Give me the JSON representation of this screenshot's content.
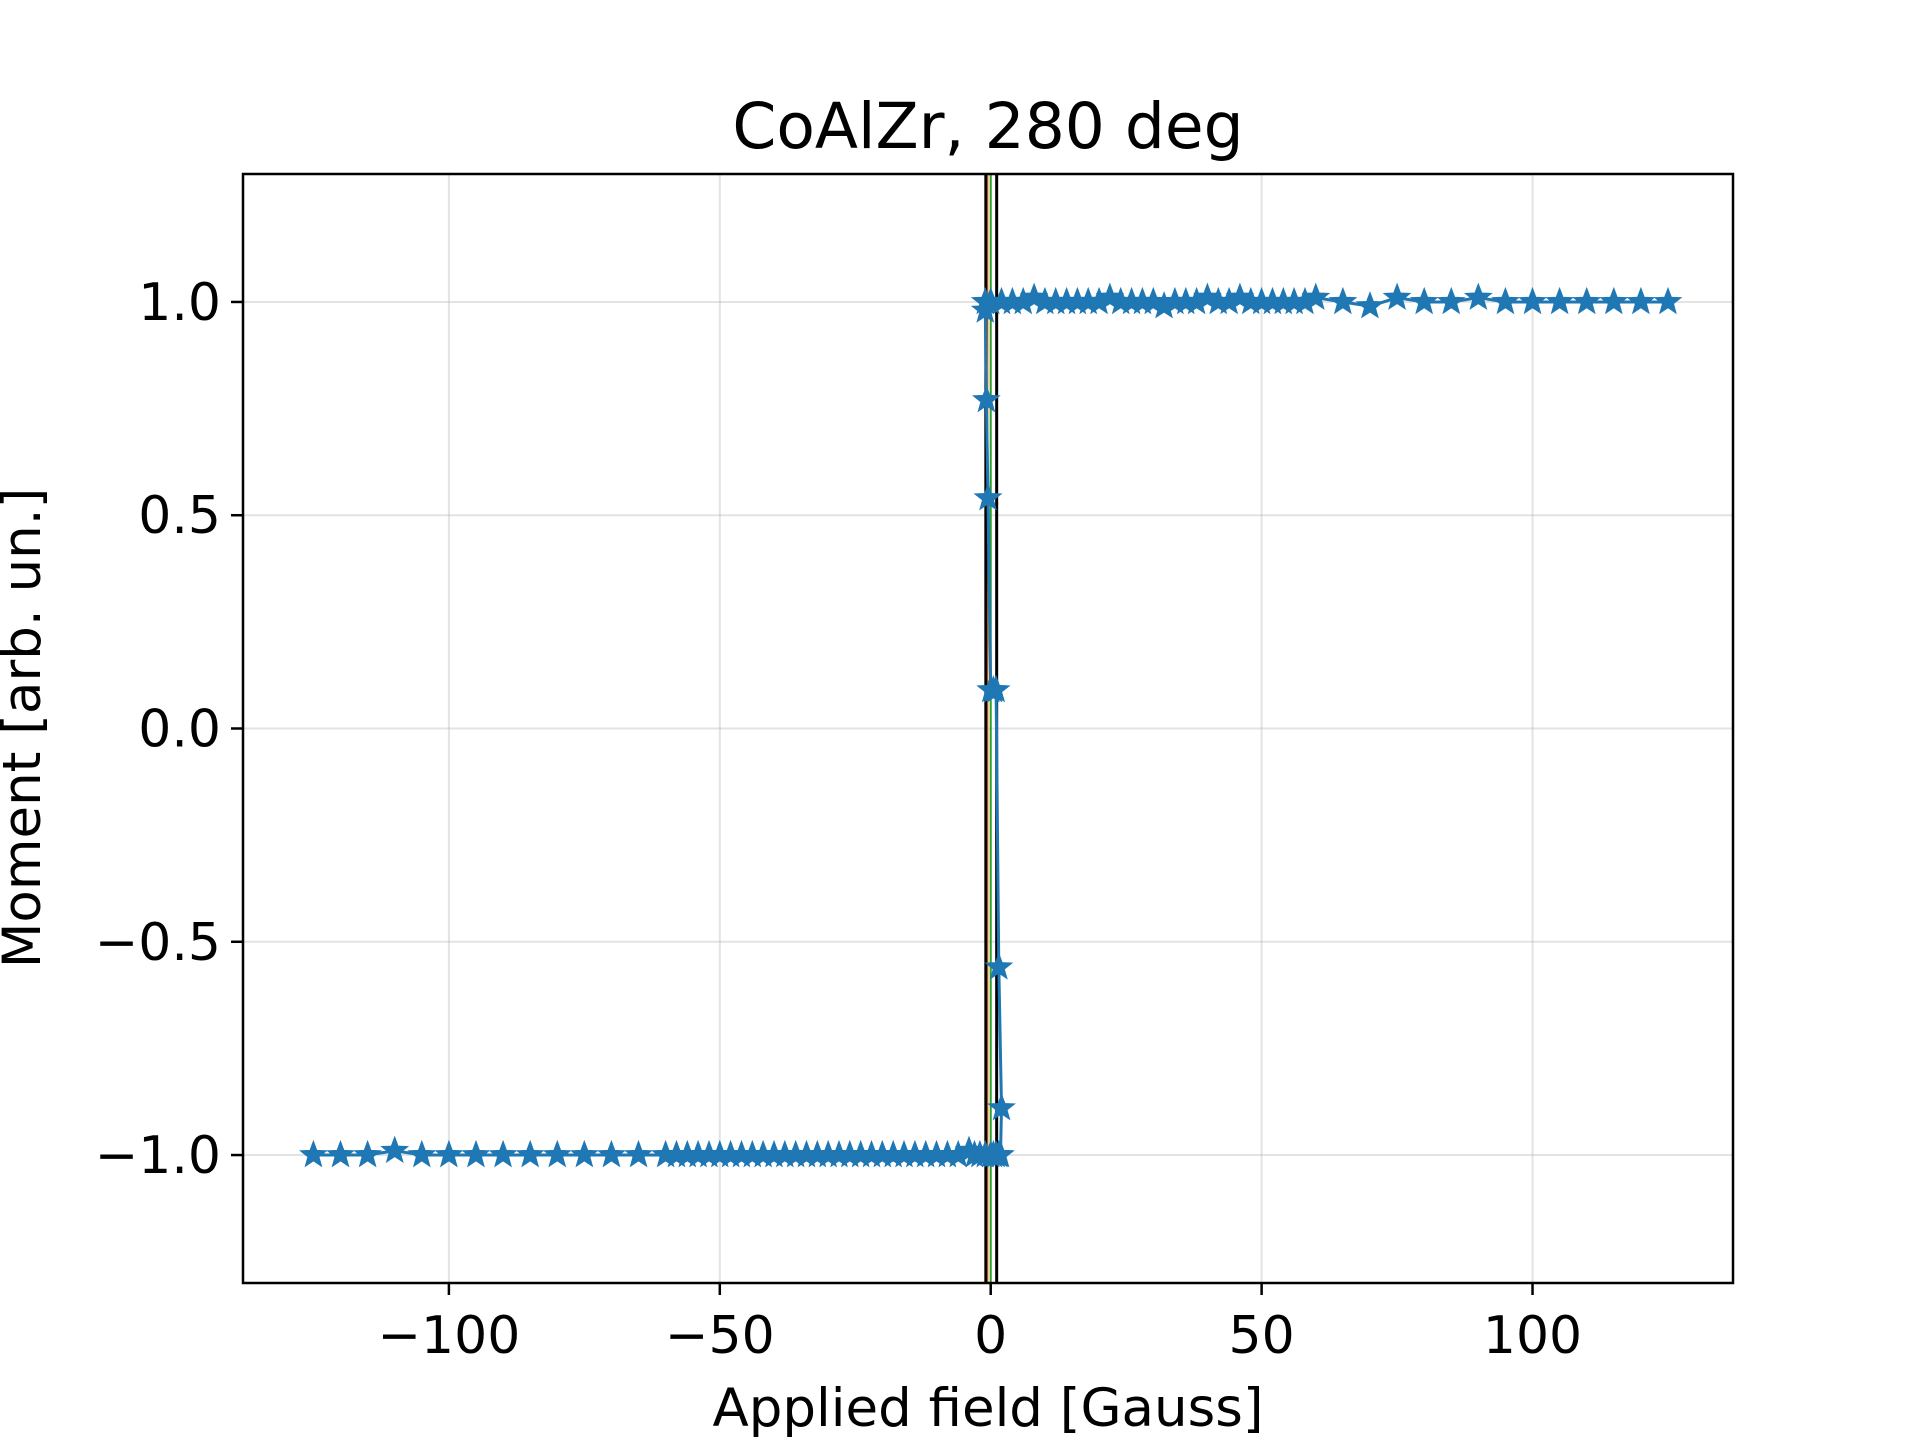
{
  "chart_data": {
    "type": "scatter",
    "title": "CoAlZr, 280 deg",
    "xlabel": "Applied field [Gauss]",
    "ylabel": "Moment [arb. un.]",
    "xlim": [
      -138,
      137
    ],
    "ylim": [
      -1.3,
      1.3
    ],
    "xticks": [
      -100,
      -50,
      0,
      50,
      100
    ],
    "xtick_labels": [
      "−100",
      "−50",
      "0",
      "50",
      "100"
    ],
    "yticks": [
      -1.0,
      -0.5,
      0.0,
      0.5,
      1.0
    ],
    "ytick_labels": [
      "−1.0",
      "−0.5",
      "0.0",
      "0.5",
      "1.0"
    ],
    "grid": true,
    "marker": "star",
    "series_color": "#1f77b4",
    "series": [
      {
        "x": [
          -125,
          -120,
          -115,
          -110,
          -105,
          -100,
          -95,
          -90,
          -85,
          -80,
          -75,
          -70,
          -65,
          -60,
          -58,
          -56,
          -54,
          -52,
          -50,
          -48,
          -46,
          -44,
          -42,
          -40,
          -38,
          -36,
          -34,
          -32,
          -30,
          -28,
          -26,
          -24,
          -22,
          -20,
          -18,
          -16,
          -14,
          -12,
          -10,
          -8,
          -6,
          -4,
          -3,
          -2,
          -1,
          0,
          0.5,
          1,
          1.5,
          1.8,
          2,
          1.5,
          1,
          0.5,
          0,
          -0.5,
          -0.8,
          -1,
          -1,
          0,
          2,
          4,
          6,
          8,
          10,
          12,
          14,
          16,
          18,
          20,
          22,
          24,
          26,
          28,
          30,
          32,
          34,
          36,
          38,
          40,
          42,
          44,
          46,
          48,
          50,
          52,
          54,
          56,
          58,
          60,
          65,
          70,
          75,
          80,
          85,
          90,
          95,
          100,
          105,
          110,
          115,
          120,
          125
        ],
        "y": [
          -1.0,
          -1.0,
          -1.0,
          -0.99,
          -1.0,
          -1.0,
          -1.0,
          -1.0,
          -1.0,
          -1.0,
          -1.0,
          -1.0,
          -1.0,
          -1.0,
          -1.0,
          -1.0,
          -1.0,
          -1.0,
          -1.0,
          -1.0,
          -1.0,
          -1.0,
          -1.0,
          -1.0,
          -1.0,
          -1.0,
          -1.0,
          -1.0,
          -1.0,
          -1.0,
          -1.0,
          -1.0,
          -1.0,
          -1.0,
          -1.0,
          -1.0,
          -1.0,
          -1.0,
          -1.0,
          -1.0,
          -1.0,
          -0.99,
          -1.0,
          -1.0,
          -1.0,
          -1.0,
          -1.0,
          -1.0,
          -1.0,
          -1.0,
          -0.89,
          -0.56,
          0.09,
          0.09,
          0.09,
          0.54,
          0.77,
          0.98,
          1.0,
          1.0,
          1.0,
          1.0,
          1.0,
          1.01,
          1.0,
          1.0,
          1.0,
          1.0,
          1.0,
          1.0,
          1.01,
          1.0,
          1.0,
          1.0,
          1.0,
          0.99,
          1.0,
          1.0,
          1.0,
          1.01,
          1.0,
          1.0,
          1.01,
          1.0,
          1.0,
          1.0,
          1.0,
          1.0,
          1.0,
          1.01,
          1.0,
          0.99,
          1.01,
          1.0,
          1.0,
          1.01,
          1.0,
          1.0,
          1.0,
          1.0,
          1.0,
          1.0,
          1.0
        ]
      }
    ],
    "vlines": [
      {
        "x": -0.6,
        "color": "#ff7f0e"
      },
      {
        "x": 0.0,
        "color": "#2ca02c"
      },
      {
        "x": -0.9,
        "color": "#000000"
      },
      {
        "x": 1.1,
        "color": "#000000"
      }
    ]
  }
}
